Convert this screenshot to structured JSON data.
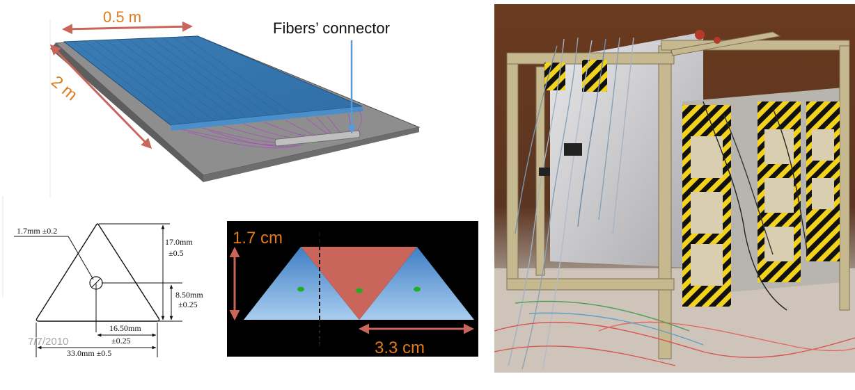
{
  "slab": {
    "width_label": "0.5 m",
    "length_label": "2 m",
    "connector_label": "Fibers’ connector"
  },
  "triangle_spec": {
    "hole_label": "1.7mm ±0.2",
    "height_value": "17.0mm",
    "height_tol": "±0.5",
    "half_height_value": "8.50mm",
    "half_height_tol": "±0.25",
    "half_base_value": "16.50mm",
    "half_base_tol": "±0.25",
    "base_label": "33.0mm ±0.5",
    "date": "7/7/2010"
  },
  "triangle_layout": {
    "height_label": "1.7 cm",
    "pitch_label": "3.3 cm"
  },
  "colors": {
    "arrow_red": "#c9655b",
    "orange_text": "#e07b1c",
    "slab_blue": "#3d7fb6",
    "fiber_purple": "#b13fc9",
    "connector_arrow_blue": "#5b9bd5",
    "triangle_red": "#c9655b",
    "triangle_blue": "#6ba6dc",
    "fiber_dot_green": "#1fb01f"
  }
}
